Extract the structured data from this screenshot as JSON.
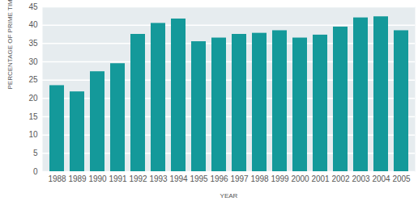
{
  "chart_data": {
    "type": "bar",
    "x_label": "YEAR",
    "y_label": "PERCENTAGE OF PRIME TIME HOURS",
    "categories": [
      "1988",
      "1989",
      "1990",
      "1991",
      "1992",
      "1993",
      "1994",
      "1995",
      "1996",
      "1997",
      "1998",
      "1999",
      "2000",
      "2001",
      "2002",
      "2003",
      "2004",
      "2005"
    ],
    "values": [
      23.5,
      21.8,
      27.3,
      29.5,
      37.5,
      40.5,
      41.7,
      35.5,
      36.5,
      37.5,
      37.8,
      38.5,
      36.5,
      37.3,
      39.5,
      42,
      42.3,
      38.5
    ],
    "color": "#14999a",
    "ylim": [
      0,
      45
    ],
    "yticks": [
      0,
      5,
      10,
      15,
      20,
      25,
      30,
      35,
      40,
      45
    ],
    "grid": true
  }
}
